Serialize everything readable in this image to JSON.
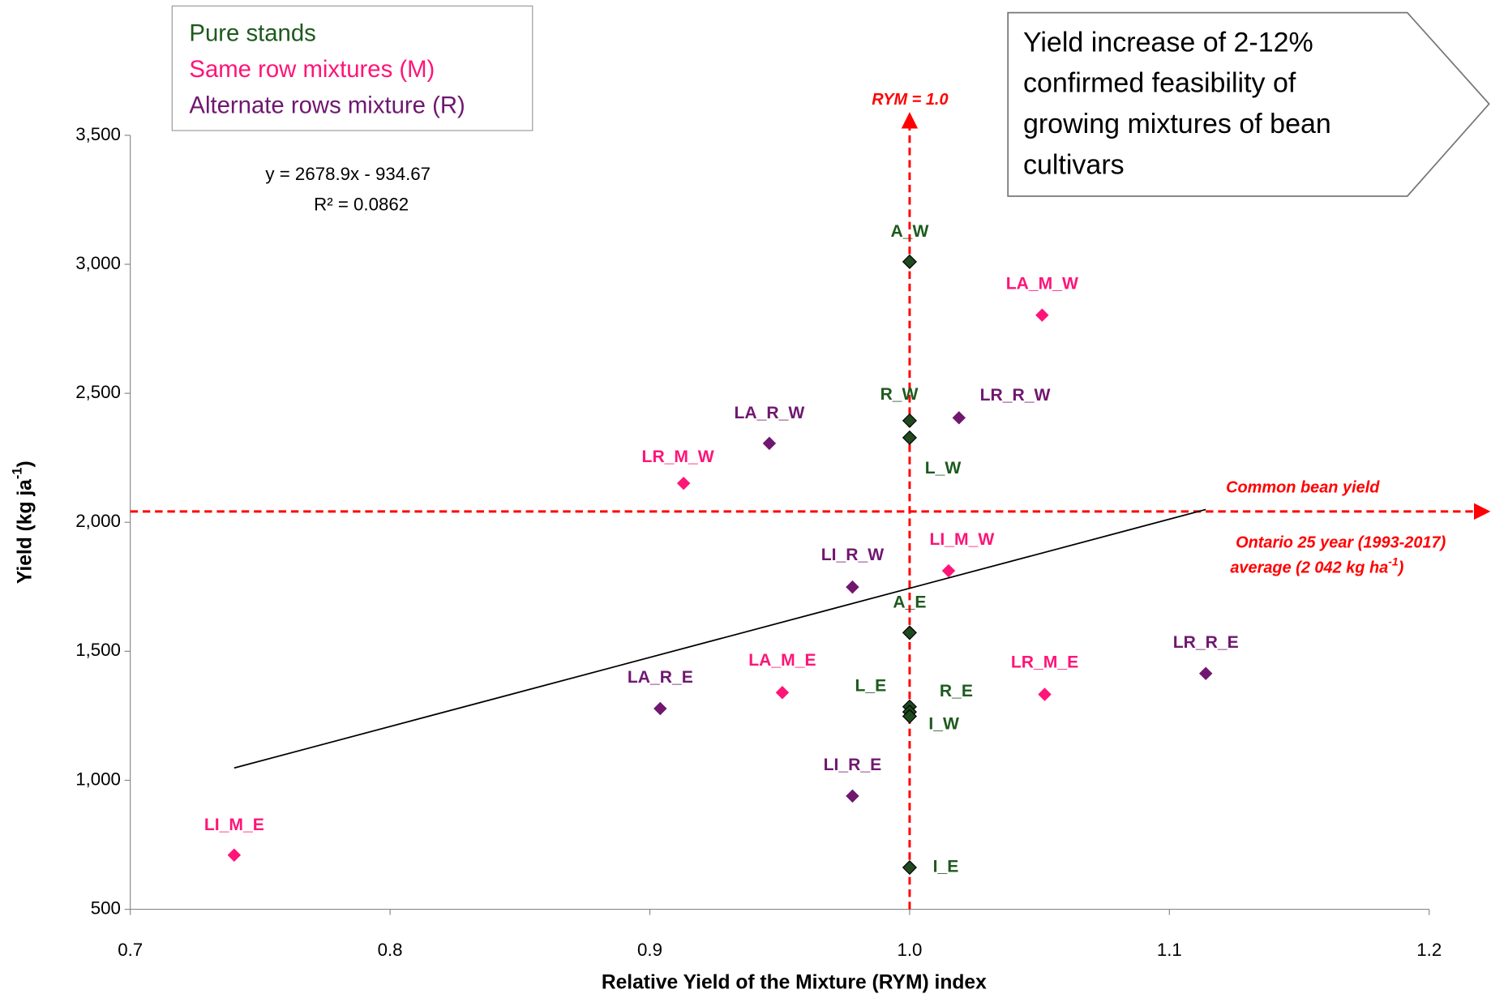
{
  "chart_data": {
    "type": "scatter",
    "x_label": "Relative Yield of the Mixture (RYM) index",
    "y_label": "Yield (kg ja",
    "y_label_sup": "-1",
    "y_label_end": ")",
    "xlim": [
      0.7,
      1.2
    ],
    "xticks": [
      0.7,
      0.8,
      0.9,
      {
        "value": 1,
        "label": "1.0"
      },
      1.1,
      1.2
    ],
    "ylim": [
      500,
      3500
    ],
    "yticks": [
      500,
      {
        "value": 1000,
        "label": "1,000"
      },
      {
        "value": 1500,
        "label": "1,500"
      },
      {
        "value": 2000,
        "label": "2,000"
      },
      {
        "value": 2500,
        "label": "2,500"
      },
      {
        "value": 3000,
        "label": "3,000"
      },
      {
        "value": 3500,
        "label": "3,500"
      }
    ],
    "grid": false,
    "series": [
      {
        "name": "Pure stands",
        "color": "#1d5a1d",
        "marker_color": "#1f4a1f",
        "labels": [
          "A_W",
          "R_W",
          "L_W",
          "A_E",
          "L_E",
          "R_E",
          "I_W",
          "I_E"
        ],
        "x": [
          1,
          1,
          1,
          1,
          1,
          1,
          1,
          1
        ],
        "values": [
          3010,
          2394,
          2328,
          1572,
          1285,
          1265,
          1248,
          662
        ]
      },
      {
        "name": "Same row mixtures (M)",
        "color": "#ff1478",
        "marker_color": "#ff1478",
        "labels": [
          "LA_M_W",
          "LR_M_W",
          "LI_M_W",
          "LA_M_E",
          "LR_M_E",
          "LI_M_E"
        ],
        "x": [
          1.051,
          0.913,
          1.015,
          0.951,
          1.052,
          0.74
        ],
        "values": [
          2803,
          2151,
          1812,
          1340,
          1333,
          710
        ]
      },
      {
        "name": "Alternate rows mixture (R)",
        "color": "#701770",
        "marker_color": "#701770",
        "labels": [
          "LR_R_W",
          "LA_R_W",
          "LI_R_W",
          "LA_R_E",
          "LR_R_E",
          "LI_R_E"
        ],
        "x": [
          1.019,
          0.946,
          0.978,
          0.904,
          1.114,
          0.978
        ],
        "values": [
          2405,
          2306,
          1749,
          1278,
          1414,
          939
        ]
      }
    ],
    "trendline": {
      "slope": 2678.9,
      "intercept": -934.67,
      "equation": "y = 2678.9x - 934.67",
      "r2": "R² = 0.0862"
    },
    "ref_x": {
      "value": 1,
      "label": "RYM = 1.0"
    },
    "ref_y": {
      "value": 2042,
      "label1": "Common bean yield",
      "label2": "Ontario 25 year (1993-2017)",
      "label3": "average (2 042 kg ha",
      "label3_sup": "-1",
      "label3_end": ")"
    },
    "callout": [
      "Yield increase of 2-12%",
      "confirmed feasibility of",
      "growing mixtures of bean",
      "cultivars"
    ]
  }
}
